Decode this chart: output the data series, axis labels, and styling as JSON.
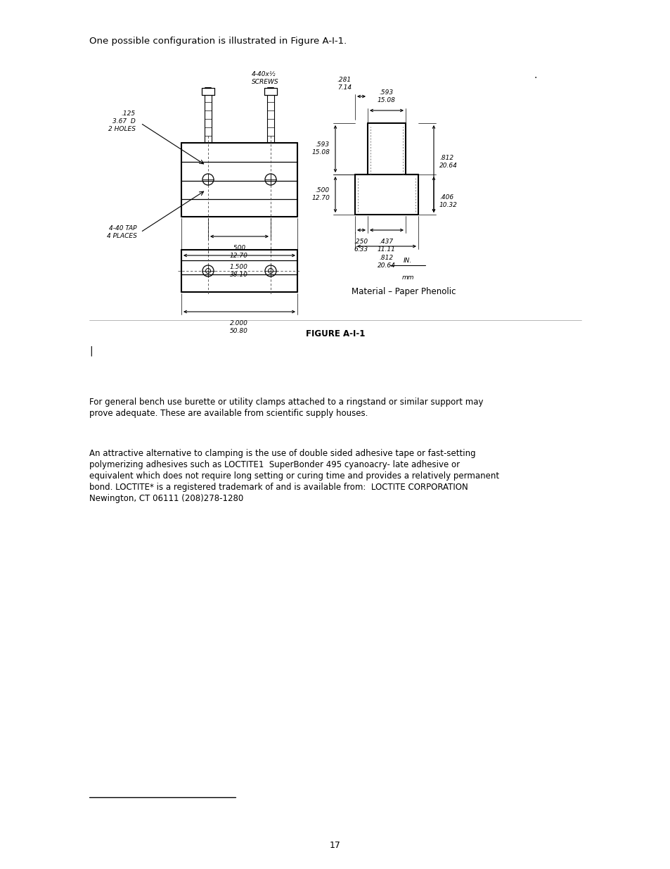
{
  "background_color": "#ffffff",
  "page_width": 9.54,
  "page_height": 12.35,
  "dpi": 100,
  "top_text": "One possible configuration is illustrated in Figure A-I-1.",
  "dot_text": ".",
  "figure_caption": "FIGURE A-I-1",
  "figure_label_bar": "|",
  "material_text": "Material – Paper Phenolic",
  "para1": "For general bench use burette or utility clamps attached to a ringstand or similar support may\nprove adequate. These are available from scientific supply houses.",
  "para2": "An attractive alternative to clamping is the use of double sided adhesive tape or fast-setting\npolymerizing adhesives such as LOCTITE1  SuperBonder 495 cyanoacry- late adhesive or\nequivalent which does not require long setting or curing time and provides a relatively permanent\nbond. LOCTITE* is a registered trademark of and is available from:  LOCTITE CORPORATION\nNewington, CT 06111 (208)278-1280",
  "page_number": "17"
}
